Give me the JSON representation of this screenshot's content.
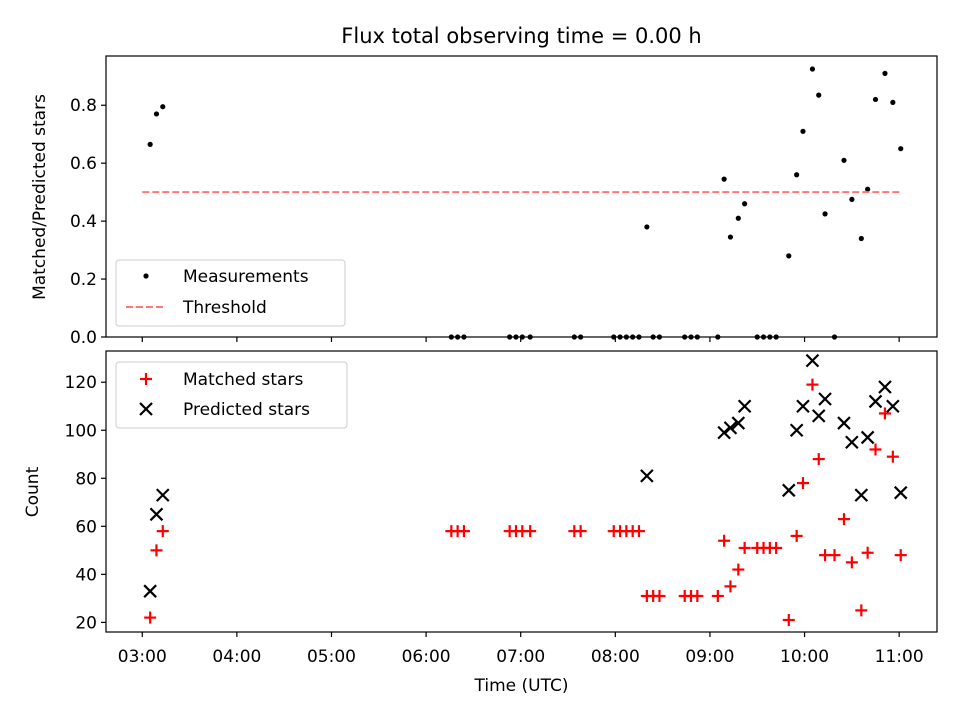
{
  "title": "Flux total observing time = 0.00 h",
  "chart_data": [
    {
      "type": "scatter",
      "ylabel": "Matched/Predicted stars",
      "ylim": [
        0,
        0.97
      ],
      "yticks": [
        0.0,
        0.2,
        0.4,
        0.6,
        0.8
      ],
      "ytick_labels": [
        "0.0",
        "0.2",
        "0.4",
        "0.6",
        "0.8"
      ],
      "grid": false,
      "legend_position": "lower-left",
      "series": [
        {
          "name": "Measurements",
          "marker": "dot",
          "color": "#000000",
          "points": [
            [
              "03:05",
              0.665
            ],
            [
              "03:09",
              0.77
            ],
            [
              "03:13",
              0.795
            ],
            [
              "06:16",
              0.0
            ],
            [
              "06:20",
              0.0
            ],
            [
              "06:24",
              0.0
            ],
            [
              "06:53",
              0.0
            ],
            [
              "06:57",
              0.0
            ],
            [
              "07:01",
              0.0
            ],
            [
              "07:06",
              0.0
            ],
            [
              "07:34",
              0.0
            ],
            [
              "07:38",
              0.0
            ],
            [
              "07:59",
              0.0
            ],
            [
              "08:03",
              0.0
            ],
            [
              "08:07",
              0.0
            ],
            [
              "08:11",
              0.0
            ],
            [
              "08:15",
              0.0
            ],
            [
              "08:20",
              0.38
            ],
            [
              "08:24",
              0.0
            ],
            [
              "08:28",
              0.0
            ],
            [
              "08:44",
              0.0
            ],
            [
              "08:48",
              0.0
            ],
            [
              "08:52",
              0.0
            ],
            [
              "09:05",
              0.0
            ],
            [
              "09:09",
              0.545
            ],
            [
              "09:13",
              0.345
            ],
            [
              "09:18",
              0.41
            ],
            [
              "09:22",
              0.46
            ],
            [
              "09:30",
              0.0
            ],
            [
              "09:34",
              0.0
            ],
            [
              "09:38",
              0.0
            ],
            [
              "09:42",
              0.0
            ],
            [
              "09:50",
              0.28
            ],
            [
              "09:55",
              0.56
            ],
            [
              "09:59",
              0.71
            ],
            [
              "10:05",
              0.925
            ],
            [
              "10:09",
              0.835
            ],
            [
              "10:13",
              0.425
            ],
            [
              "10:19",
              0.0
            ],
            [
              "10:25",
              0.61
            ],
            [
              "10:30",
              0.475
            ],
            [
              "10:36",
              0.34
            ],
            [
              "10:40",
              0.51
            ],
            [
              "10:45",
              0.82
            ],
            [
              "10:51",
              0.91
            ],
            [
              "10:56",
              0.81
            ],
            [
              "11:01",
              0.65
            ]
          ]
        },
        {
          "name": "Threshold",
          "line": "dashed",
          "color": "#ff7777",
          "points": [
            [
              "03:00",
              0.5
            ],
            [
              "11:01",
              0.5
            ]
          ]
        }
      ]
    },
    {
      "type": "scatter",
      "xlabel": "Time (UTC)",
      "ylabel": "Count",
      "ylim": [
        16,
        133
      ],
      "yticks": [
        20,
        40,
        60,
        80,
        100,
        120
      ],
      "ytick_labels": [
        "20",
        "40",
        "60",
        "80",
        "100",
        "120"
      ],
      "grid": false,
      "legend_position": "upper-left",
      "series": [
        {
          "name": "Matched stars",
          "marker": "plus",
          "color": "#ff0000",
          "points": [
            [
              "03:05",
              22
            ],
            [
              "03:09",
              50
            ],
            [
              "03:13",
              58
            ],
            [
              "06:16",
              58
            ],
            [
              "06:20",
              58
            ],
            [
              "06:24",
              58
            ],
            [
              "06:53",
              58
            ],
            [
              "06:57",
              58
            ],
            [
              "07:01",
              58
            ],
            [
              "07:06",
              58
            ],
            [
              "07:34",
              58
            ],
            [
              "07:38",
              58
            ],
            [
              "07:59",
              58
            ],
            [
              "08:03",
              58
            ],
            [
              "08:07",
              58
            ],
            [
              "08:11",
              58
            ],
            [
              "08:15",
              58
            ],
            [
              "08:20",
              31
            ],
            [
              "08:24",
              31
            ],
            [
              "08:28",
              31
            ],
            [
              "08:44",
              31
            ],
            [
              "08:48",
              31
            ],
            [
              "08:52",
              31
            ],
            [
              "09:05",
              31
            ],
            [
              "09:09",
              54
            ],
            [
              "09:13",
              35
            ],
            [
              "09:18",
              42
            ],
            [
              "09:22",
              51
            ],
            [
              "09:30",
              51
            ],
            [
              "09:34",
              51
            ],
            [
              "09:38",
              51
            ],
            [
              "09:42",
              51
            ],
            [
              "09:50",
              21
            ],
            [
              "09:55",
              56
            ],
            [
              "09:59",
              78
            ],
            [
              "10:05",
              119
            ],
            [
              "10:09",
              88
            ],
            [
              "10:13",
              48
            ],
            [
              "10:19",
              48
            ],
            [
              "10:25",
              63
            ],
            [
              "10:30",
              45
            ],
            [
              "10:36",
              25
            ],
            [
              "10:40",
              49
            ],
            [
              "10:45",
              92
            ],
            [
              "10:51",
              107
            ],
            [
              "10:56",
              89
            ],
            [
              "11:01",
              48
            ]
          ]
        },
        {
          "name": "Predicted stars",
          "marker": "x",
          "color": "#000000",
          "points": [
            [
              "03:05",
              33
            ],
            [
              "03:09",
              65
            ],
            [
              "03:13",
              73
            ],
            [
              "08:20",
              81
            ],
            [
              "09:09",
              99
            ],
            [
              "09:13",
              101
            ],
            [
              "09:18",
              103
            ],
            [
              "09:22",
              110
            ],
            [
              "09:50",
              75
            ],
            [
              "09:55",
              100
            ],
            [
              "09:59",
              110
            ],
            [
              "10:05",
              129
            ],
            [
              "10:09",
              106
            ],
            [
              "10:13",
              113
            ],
            [
              "10:25",
              103
            ],
            [
              "10:30",
              95
            ],
            [
              "10:36",
              73
            ],
            [
              "10:40",
              97
            ],
            [
              "10:45",
              112
            ],
            [
              "10:51",
              118
            ],
            [
              "10:56",
              110
            ],
            [
              "11:01",
              74
            ]
          ]
        }
      ]
    }
  ],
  "x_axis": {
    "range": [
      "02:37",
      "11:24"
    ],
    "ticks": [
      "03:00",
      "04:00",
      "05:00",
      "06:00",
      "07:00",
      "08:00",
      "09:00",
      "10:00",
      "11:00"
    ]
  }
}
